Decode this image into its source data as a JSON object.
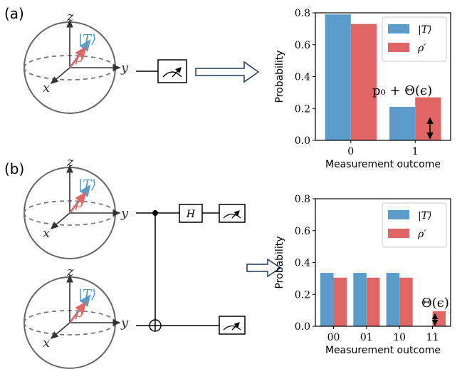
{
  "panels": {
    "a": {
      "label": "(a)",
      "bloch": {
        "axis_x": "x",
        "axis_y": "y",
        "axis_z": "z",
        "state": "|T⟩",
        "mixed": "ρ"
      },
      "gate": "",
      "annotation": "p₀ + Θ(ϵ)"
    },
    "b": {
      "label": "(b)",
      "bloch_top": {
        "axis_x": "x",
        "axis_y": "y",
        "axis_z": "z",
        "state": "|T⟩",
        "mixed": "ρ"
      },
      "bloch_bottom": {
        "axis_x": "x",
        "axis_y": "y",
        "axis_z": "z",
        "state": "|T⟩",
        "mixed": "ρ"
      },
      "gate": "H",
      "annotation": "Θ(ϵ)"
    }
  },
  "colors": {
    "blue": "#5b9ccb",
    "red": "#e06666",
    "sphere": "#666666"
  },
  "chart_data": [
    {
      "type": "bar",
      "categories": [
        "0",
        "1"
      ],
      "series": [
        {
          "name": "|T⟩",
          "values": [
            0.79,
            0.21
          ]
        },
        {
          "name": "ρ′",
          "values": [
            0.73,
            0.27
          ]
        }
      ],
      "xlabel": "Measurement outcome",
      "ylabel": "Probability",
      "ylim": [
        0,
        0.8
      ],
      "yticks": [
        "0.0",
        "0.2",
        "0.4",
        "0.6",
        "0.8"
      ],
      "legend": "top-right"
    },
    {
      "type": "bar",
      "categories": [
        "00",
        "01",
        "10",
        "11"
      ],
      "series": [
        {
          "name": "|T⟩",
          "values": [
            0.335,
            0.335,
            0.335,
            0.0
          ]
        },
        {
          "name": "ρ′",
          "values": [
            0.305,
            0.305,
            0.305,
            0.095
          ]
        }
      ],
      "xlabel": "Measurement outcome",
      "ylabel": "Probability",
      "ylim": [
        0,
        0.8
      ],
      "yticks": [
        "0.0",
        "0.2",
        "0.4",
        "0.6",
        "0.8"
      ],
      "legend": "top-right"
    }
  ]
}
